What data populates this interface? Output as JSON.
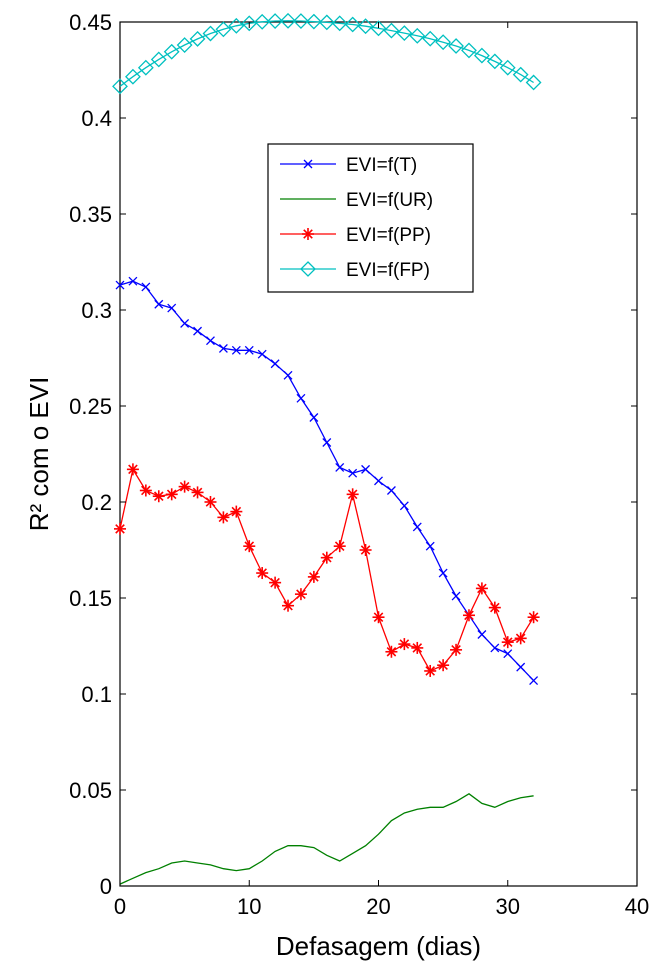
{
  "chart_data": {
    "type": "line",
    "xlabel": "Defasagem (dias)",
    "ylabel": "R² com o EVI",
    "xlim": [
      0,
      40
    ],
    "ylim": [
      0,
      0.45
    ],
    "xticks": [
      0,
      10,
      20,
      30,
      40
    ],
    "xtick_labels": [
      "0",
      "10",
      "20",
      "30",
      "40"
    ],
    "yticks": [
      0,
      0.05,
      0.1,
      0.15,
      0.2,
      0.25,
      0.3,
      0.35,
      0.4,
      0.45
    ],
    "ytick_labels": [
      "0",
      "0.05",
      "0.1",
      "0.15",
      "0.2",
      "0.25",
      "0.3",
      "0.35",
      "0.4",
      "0.45"
    ],
    "grid": false,
    "legend_position": "upper-center",
    "x": [
      0,
      1,
      2,
      3,
      4,
      5,
      6,
      7,
      8,
      9,
      10,
      11,
      12,
      13,
      14,
      15,
      16,
      17,
      18,
      19,
      20,
      21,
      22,
      23,
      24,
      25,
      26,
      27,
      28,
      29,
      30,
      31,
      32
    ],
    "series": [
      {
        "name": "EVI=f(T)",
        "color": "#0000ff",
        "marker": "x",
        "values": [
          0.313,
          0.315,
          0.312,
          0.303,
          0.301,
          0.293,
          0.289,
          0.284,
          0.28,
          0.279,
          0.279,
          0.277,
          0.272,
          0.266,
          0.254,
          0.244,
          0.231,
          0.218,
          0.215,
          0.217,
          0.211,
          0.206,
          0.198,
          0.187,
          0.177,
          0.163,
          0.151,
          0.141,
          0.131,
          0.124,
          0.121,
          0.114,
          0.107
        ]
      },
      {
        "name": "EVI=f(UR)",
        "color": "#008000",
        "marker": "none",
        "values": [
          0.001,
          0.004,
          0.007,
          0.009,
          0.012,
          0.013,
          0.012,
          0.011,
          0.009,
          0.008,
          0.009,
          0.013,
          0.018,
          0.021,
          0.021,
          0.02,
          0.016,
          0.013,
          0.017,
          0.021,
          0.027,
          0.034,
          0.038,
          0.04,
          0.041,
          0.041,
          0.044,
          0.048,
          0.043,
          0.041,
          0.044,
          0.046,
          0.047
        ]
      },
      {
        "name": "EVI=f(PP)",
        "color": "#ff0000",
        "marker": "*",
        "values": [
          0.186,
          0.217,
          0.206,
          0.203,
          0.204,
          0.208,
          0.205,
          0.2,
          0.192,
          0.195,
          0.177,
          0.163,
          0.158,
          0.146,
          0.152,
          0.161,
          0.171,
          0.177,
          0.204,
          0.175,
          0.14,
          0.122,
          0.126,
          0.124,
          0.112,
          0.115,
          0.123,
          0.141,
          0.155,
          0.145,
          0.127,
          0.129,
          0.14
        ]
      },
      {
        "name": "EVI=f(FP)",
        "color": "#00c0c0",
        "marker": "diamond",
        "values": [
          0.4165,
          0.4215,
          0.4262,
          0.4305,
          0.4345,
          0.438,
          0.4412,
          0.444,
          0.4462,
          0.448,
          0.4493,
          0.4501,
          0.4505,
          0.4506,
          0.4505,
          0.4502,
          0.4498,
          0.4493,
          0.4487,
          0.4478,
          0.4467,
          0.4455,
          0.4442,
          0.4428,
          0.4413,
          0.4395,
          0.4375,
          0.4352,
          0.4325,
          0.4295,
          0.4262,
          0.4226,
          0.4185
        ]
      }
    ]
  }
}
